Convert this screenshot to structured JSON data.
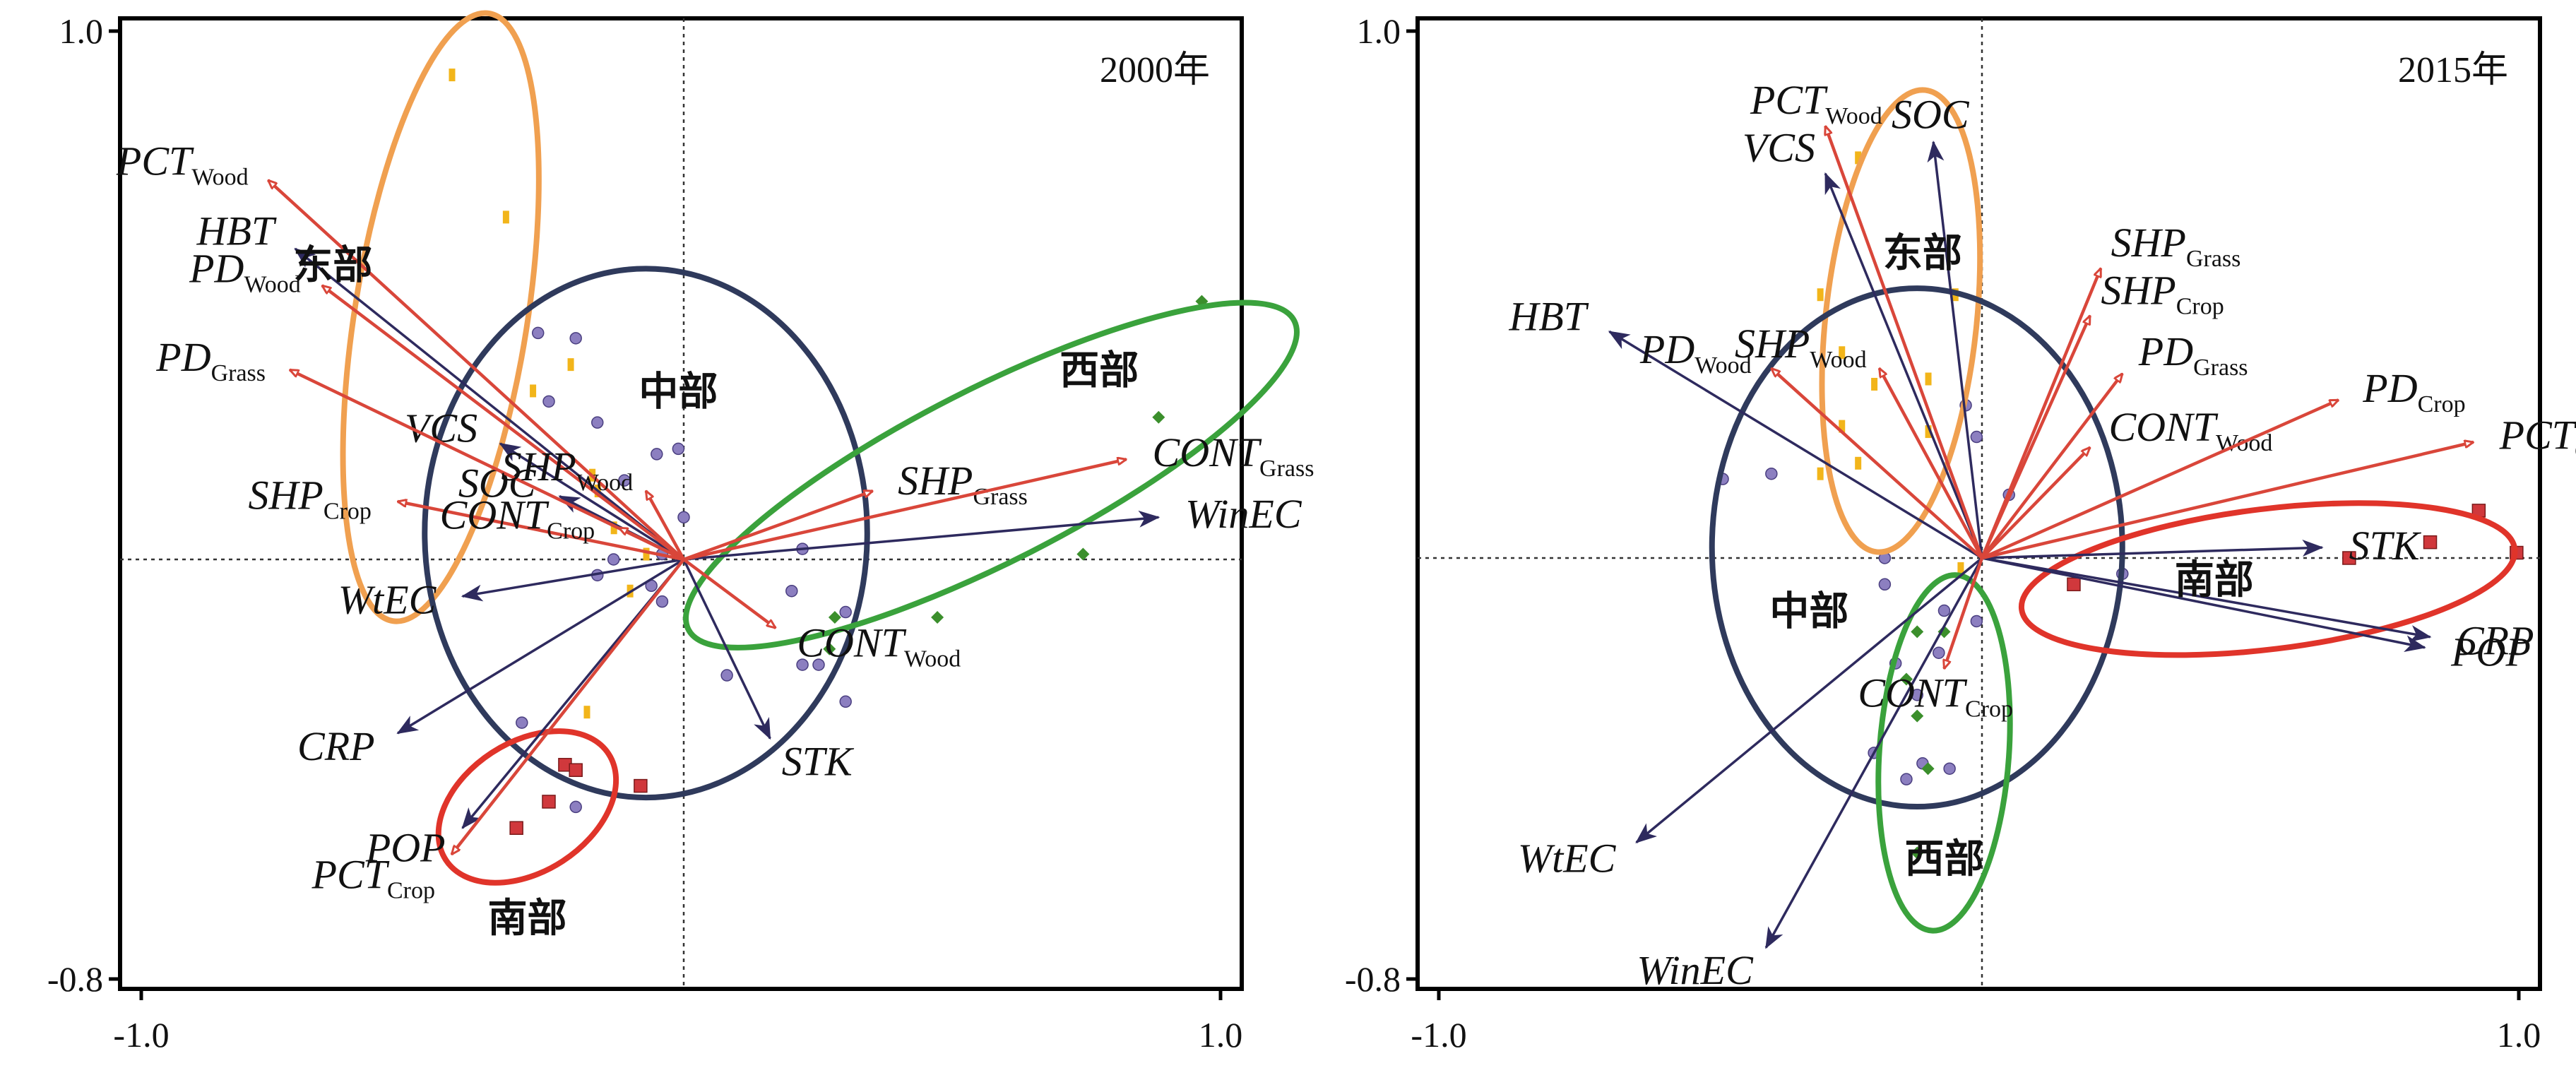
{
  "colors": {
    "response_arrow": "#d9463a",
    "explanatory_arrow": "#2e2a5e",
    "east": "#f0a050",
    "central": "#2f3a5c",
    "west": "#3aa23c",
    "south": "#e0342a",
    "east_point": "#f2b51a",
    "central_point": "#8c7fc0",
    "west_point": "#3b8f2c",
    "south_point": "#d0383c"
  },
  "chart_data": [
    {
      "type": "scatter",
      "title": "2000年",
      "xlim": [
        -1.0,
        1.0
      ],
      "ylim": [
        -0.8,
        1.0
      ],
      "x_ticks": [
        "-1.0",
        "1.0"
      ],
      "y_ticks": [
        "1.0",
        "-0.8"
      ],
      "grid": false,
      "response_vectors": [
        {
          "id": "pct-wood",
          "base": "PCT",
          "sub": "Wood",
          "x": -0.77,
          "y": 0.72
        },
        {
          "id": "pd-wood",
          "base": "PD",
          "sub": "Wood",
          "x": -0.67,
          "y": 0.52
        },
        {
          "id": "pd-grass",
          "base": "PD",
          "sub": "Grass",
          "x": -0.73,
          "y": 0.36
        },
        {
          "id": "shp-crop",
          "base": "SHP",
          "sub": "Crop",
          "x": -0.53,
          "y": 0.11
        },
        {
          "id": "shp-wood",
          "base": "SHP",
          "sub": "Wood",
          "x": -0.07,
          "y": 0.13
        },
        {
          "id": "shp-grass",
          "base": "SHP",
          "sub": "Grass",
          "x": 0.35,
          "y": 0.13
        },
        {
          "id": "cont-grass",
          "base": "CONT",
          "sub": "Grass",
          "x": 0.82,
          "y": 0.19
        },
        {
          "id": "cont-wood",
          "base": "CONT",
          "sub": "Wood",
          "x": 0.17,
          "y": -0.13
        },
        {
          "id": "cont-crop",
          "base": "CONT",
          "sub": "Crop",
          "x": -0.12,
          "y": 0.06
        },
        {
          "id": "pct-crop",
          "base": "PCT",
          "sub": "Crop",
          "x": -0.43,
          "y": -0.56
        }
      ],
      "explanatory_vectors": [
        {
          "id": "hbt",
          "label": "HBT",
          "x": -0.72,
          "y": 0.59
        },
        {
          "id": "vcs",
          "label": "VCS",
          "x": -0.34,
          "y": 0.22
        },
        {
          "id": "soc",
          "label": "SOC",
          "x": -0.23,
          "y": 0.12
        },
        {
          "id": "wtec",
          "label": "WtEC",
          "x": -0.41,
          "y": -0.07
        },
        {
          "id": "crp",
          "label": "CRP",
          "x": -0.53,
          "y": -0.33
        },
        {
          "id": "pop",
          "label": "POP",
          "x": -0.41,
          "y": -0.51
        },
        {
          "id": "winec",
          "label": "WinEC",
          "x": 0.88,
          "y": 0.08
        },
        {
          "id": "stk",
          "label": "STK",
          "x": 0.16,
          "y": -0.34
        }
      ],
      "regions": [
        {
          "id": "east",
          "label": "东部",
          "cx": -0.45,
          "cy": 0.46,
          "rx": 0.57,
          "ry": 0.16,
          "angle": -81
        },
        {
          "id": "central",
          "label": "中部",
          "cx": -0.07,
          "cy": 0.05,
          "rx": 0.41,
          "ry": 0.49,
          "angle": 0
        },
        {
          "id": "west",
          "label": "西部",
          "cx": 0.57,
          "cy": 0.16,
          "rx": 0.63,
          "ry": 0.16,
          "angle": -27
        },
        {
          "id": "south",
          "label": "南部",
          "cx": -0.29,
          "cy": -0.47,
          "rx": 0.18,
          "ry": 0.12,
          "angle": -33
        }
      ],
      "points": [
        {
          "region": "east",
          "x": -0.43,
          "y": 0.92
        },
        {
          "region": "east",
          "x": -0.33,
          "y": 0.65
        },
        {
          "region": "east",
          "x": -0.21,
          "y": 0.37
        },
        {
          "region": "east",
          "x": -0.28,
          "y": 0.32
        },
        {
          "region": "east",
          "x": -0.17,
          "y": 0.16
        },
        {
          "region": "east",
          "x": -0.13,
          "y": 0.06
        },
        {
          "region": "east",
          "x": -0.16,
          "y": 0.13
        },
        {
          "region": "east",
          "x": -0.07,
          "y": 0.01
        },
        {
          "region": "east",
          "x": -0.1,
          "y": -0.06
        },
        {
          "region": "east",
          "x": -0.18,
          "y": -0.29
        },
        {
          "region": "central",
          "x": -0.27,
          "y": 0.43
        },
        {
          "region": "central",
          "x": -0.2,
          "y": 0.42
        },
        {
          "region": "central",
          "x": -0.25,
          "y": 0.3
        },
        {
          "region": "central",
          "x": -0.16,
          "y": 0.26
        },
        {
          "region": "central",
          "x": -0.05,
          "y": 0.2
        },
        {
          "region": "central",
          "x": -0.01,
          "y": 0.21
        },
        {
          "region": "central",
          "x": -0.11,
          "y": 0.15
        },
        {
          "region": "central",
          "x": 0.0,
          "y": 0.08
        },
        {
          "region": "central",
          "x": -0.13,
          "y": 0.0
        },
        {
          "region": "central",
          "x": -0.04,
          "y": 0.01
        },
        {
          "region": "central",
          "x": -0.06,
          "y": -0.05
        },
        {
          "region": "central",
          "x": -0.16,
          "y": -0.03
        },
        {
          "region": "central",
          "x": -0.04,
          "y": -0.08
        },
        {
          "region": "central",
          "x": 0.22,
          "y": 0.02
        },
        {
          "region": "central",
          "x": 0.2,
          "y": -0.06
        },
        {
          "region": "central",
          "x": 0.3,
          "y": -0.1
        },
        {
          "region": "central",
          "x": 0.22,
          "y": -0.2
        },
        {
          "region": "central",
          "x": 0.25,
          "y": -0.2
        },
        {
          "region": "central",
          "x": 0.08,
          "y": -0.22
        },
        {
          "region": "central",
          "x": 0.3,
          "y": -0.27
        },
        {
          "region": "central",
          "x": -0.3,
          "y": -0.31
        },
        {
          "region": "central",
          "x": -0.2,
          "y": -0.47
        },
        {
          "region": "west",
          "x": 0.96,
          "y": 0.49
        },
        {
          "region": "west",
          "x": 0.88,
          "y": 0.27
        },
        {
          "region": "west",
          "x": 0.74,
          "y": 0.01
        },
        {
          "region": "west",
          "x": 0.47,
          "y": -0.11
        },
        {
          "region": "west",
          "x": 0.28,
          "y": -0.11
        },
        {
          "region": "west",
          "x": 0.27,
          "y": -0.17
        },
        {
          "region": "south",
          "x": -0.22,
          "y": -0.39
        },
        {
          "region": "south",
          "x": -0.2,
          "y": -0.4
        },
        {
          "region": "south",
          "x": -0.25,
          "y": -0.46
        },
        {
          "region": "south",
          "x": -0.08,
          "y": -0.43
        },
        {
          "region": "south",
          "x": -0.31,
          "y": -0.51
        }
      ]
    },
    {
      "type": "scatter",
      "title": "2015年",
      "xlim": [
        -1.0,
        1.0
      ],
      "ylim": [
        -0.8,
        1.0
      ],
      "x_ticks": [
        "-1.0",
        "1.0"
      ],
      "y_ticks": [
        "1.0",
        "-0.8"
      ],
      "grid": false,
      "response_vectors": [
        {
          "id": "pct-wood",
          "base": "PCT",
          "sub": "Wood",
          "x": -0.29,
          "y": 0.82
        },
        {
          "id": "shp-grass",
          "base": "SHP",
          "sub": "Grass",
          "x": 0.22,
          "y": 0.55
        },
        {
          "id": "shp-crop",
          "base": "SHP",
          "sub": "Crop",
          "x": 0.2,
          "y": 0.46
        },
        {
          "id": "pd-grass",
          "base": "PD",
          "sub": "Grass",
          "x": 0.26,
          "y": 0.35
        },
        {
          "id": "pd-wood",
          "base": "PD",
          "sub": "Wood",
          "x": -0.39,
          "y": 0.36
        },
        {
          "id": "shp-wood",
          "base": "SHP",
          "sub": "Wood",
          "x": -0.19,
          "y": 0.36
        },
        {
          "id": "cont-wood",
          "base": "CONT",
          "sub": "Wood",
          "x": 0.2,
          "y": 0.21
        },
        {
          "id": "pd-crop",
          "base": "PD",
          "sub": "Crop",
          "x": 0.66,
          "y": 0.3
        },
        {
          "id": "pct-crop",
          "base": "PCT",
          "sub": "Crop",
          "x": 0.91,
          "y": 0.22
        },
        {
          "id": "cont-crop",
          "base": "CONT",
          "sub": "Crop",
          "x": -0.07,
          "y": -0.21
        }
      ],
      "explanatory_vectors": [
        {
          "id": "soc",
          "label": "SOC",
          "x": -0.09,
          "y": 0.79
        },
        {
          "id": "vcs",
          "label": "VCS",
          "x": -0.29,
          "y": 0.73
        },
        {
          "id": "hbt",
          "label": "HBT",
          "x": -0.69,
          "y": 0.43
        },
        {
          "id": "stk",
          "label": "STK",
          "x": 0.63,
          "y": 0.02
        },
        {
          "id": "crp",
          "label": "CRP",
          "x": 0.83,
          "y": -0.15
        },
        {
          "id": "pop",
          "label": "POP",
          "x": 0.82,
          "y": -0.17
        },
        {
          "id": "wtec",
          "label": "WtEC",
          "x": -0.64,
          "y": -0.54
        },
        {
          "id": "winec",
          "label": "WinEC",
          "x": -0.4,
          "y": -0.74
        }
      ],
      "regions": [
        {
          "id": "east",
          "label": "东部",
          "cx": -0.15,
          "cy": 0.45,
          "rx": 0.43,
          "ry": 0.14,
          "angle": -84
        },
        {
          "id": "central",
          "label": "中部",
          "cx": -0.12,
          "cy": 0.02,
          "rx": 0.38,
          "ry": 0.48,
          "angle": 0
        },
        {
          "id": "west",
          "label": "西部",
          "cx": -0.07,
          "cy": -0.37,
          "rx": 0.33,
          "ry": 0.12,
          "angle": -86
        },
        {
          "id": "south",
          "label": "南部",
          "cx": 0.53,
          "cy": -0.04,
          "rx": 0.46,
          "ry": 0.13,
          "angle": -7
        }
      ],
      "points": [
        {
          "region": "east",
          "x": -0.23,
          "y": 0.76
        },
        {
          "region": "east",
          "x": -0.3,
          "y": 0.5
        },
        {
          "region": "east",
          "x": -0.26,
          "y": 0.39
        },
        {
          "region": "east",
          "x": -0.2,
          "y": 0.33
        },
        {
          "region": "east",
          "x": -0.1,
          "y": 0.34
        },
        {
          "region": "east",
          "x": -0.26,
          "y": 0.25
        },
        {
          "region": "east",
          "x": -0.1,
          "y": 0.24
        },
        {
          "region": "east",
          "x": -0.23,
          "y": 0.18
        },
        {
          "region": "east",
          "x": -0.05,
          "y": 0.5
        },
        {
          "region": "east",
          "x": -0.04,
          "y": -0.02
        },
        {
          "region": "east",
          "x": -0.3,
          "y": 0.16
        },
        {
          "region": "central",
          "x": -0.39,
          "y": 0.16
        },
        {
          "region": "central",
          "x": -0.48,
          "y": 0.15
        },
        {
          "region": "central",
          "x": -0.03,
          "y": 0.29
        },
        {
          "region": "central",
          "x": -0.01,
          "y": 0.23
        },
        {
          "region": "central",
          "x": 0.05,
          "y": 0.12
        },
        {
          "region": "central",
          "x": 0.26,
          "y": -0.03
        },
        {
          "region": "central",
          "x": -0.18,
          "y": -0.05
        },
        {
          "region": "central",
          "x": -0.18,
          "y": 0.0
        },
        {
          "region": "central",
          "x": -0.01,
          "y": -0.12
        },
        {
          "region": "central",
          "x": -0.07,
          "y": -0.1
        },
        {
          "region": "central",
          "x": -0.08,
          "y": -0.18
        },
        {
          "region": "central",
          "x": -0.16,
          "y": -0.2
        },
        {
          "region": "central",
          "x": -0.12,
          "y": -0.26
        },
        {
          "region": "central",
          "x": -0.2,
          "y": -0.37
        },
        {
          "region": "central",
          "x": -0.14,
          "y": -0.42
        },
        {
          "region": "central",
          "x": -0.11,
          "y": -0.39
        },
        {
          "region": "central",
          "x": -0.06,
          "y": -0.4
        },
        {
          "region": "west",
          "x": -0.12,
          "y": -0.14
        },
        {
          "region": "west",
          "x": -0.07,
          "y": -0.14
        },
        {
          "region": "west",
          "x": -0.14,
          "y": -0.23
        },
        {
          "region": "west",
          "x": -0.12,
          "y": -0.3
        },
        {
          "region": "west",
          "x": -0.1,
          "y": -0.4
        },
        {
          "region": "west",
          "x": -0.12,
          "y": -0.56
        },
        {
          "region": "south",
          "x": 0.92,
          "y": 0.09
        },
        {
          "region": "south",
          "x": 0.83,
          "y": 0.03
        },
        {
          "region": "south",
          "x": 0.99,
          "y": 0.01
        },
        {
          "region": "south",
          "x": 0.68,
          "y": 0.0
        },
        {
          "region": "south",
          "x": 0.17,
          "y": -0.05
        }
      ]
    }
  ]
}
